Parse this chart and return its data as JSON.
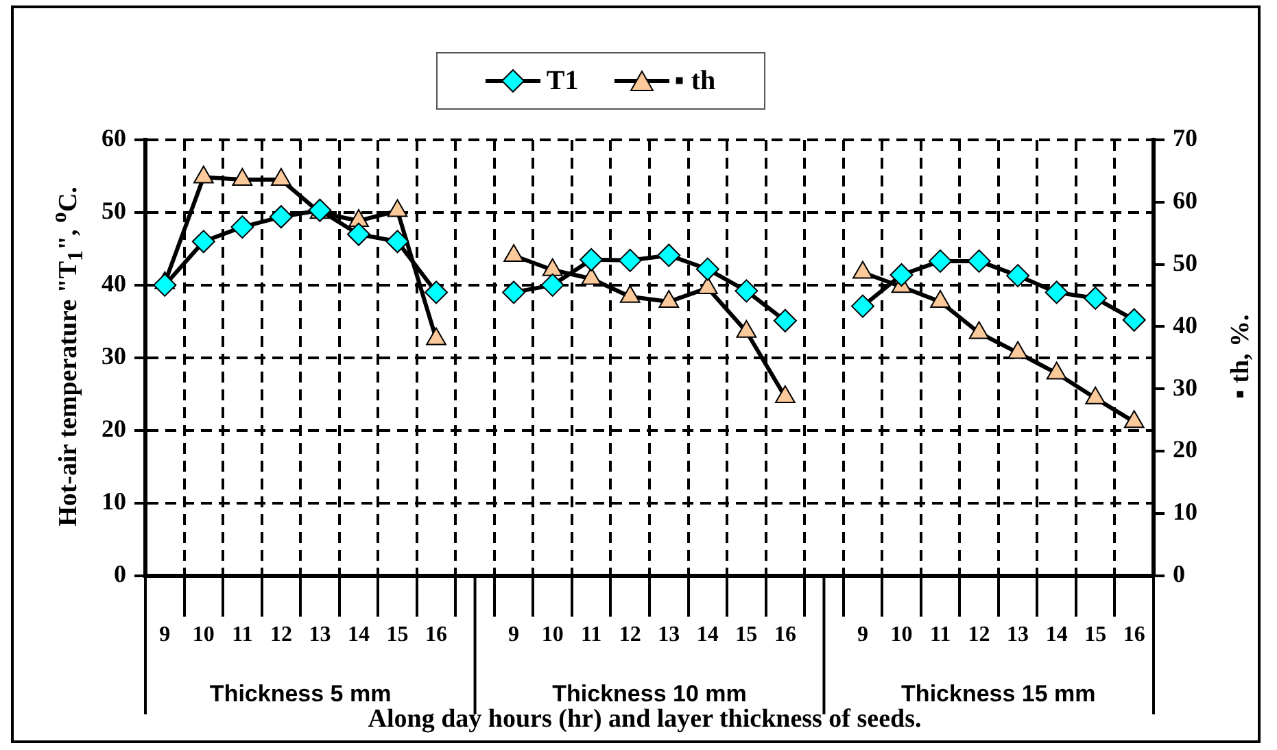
{
  "chart_data": {
    "type": "line",
    "xlabel": "Along day hours (hr) and layer thickness of seeds.",
    "ylabel": "Hot-air temperature \"T$_{1}$\", $^{o}$C.",
    "y2label": "▪ th, %.",
    "categories": [
      "9",
      "10",
      "11",
      "12",
      "13",
      "14",
      "15",
      "16",
      null,
      "9",
      "10",
      "11",
      "12",
      "13",
      "14",
      "15",
      "16",
      null,
      "9",
      "10",
      "11",
      "12",
      "13",
      "14",
      "15",
      "16"
    ],
    "annotations": [
      "Thickness 5 mm",
      "Thickness 10 mm",
      "Thickness 15 mm"
    ],
    "series": [
      {
        "name": "T1",
        "color": "#00ffff",
        "marker": "diamond",
        "values": [
          40,
          46,
          48,
          49.4,
          50.3,
          47,
          46,
          39,
          null,
          39,
          40,
          43.5,
          43.4,
          44.1,
          42.2,
          39.2,
          35.1,
          null,
          37.1,
          41.4,
          43.3,
          43.3,
          41.3,
          39,
          38.2,
          35.2
        ]
      },
      {
        "name": "▪ th",
        "color": "#fbc99a",
        "marker": "triangle",
        "axis": "y2",
        "values": [
          47,
          64,
          63.6,
          63.6,
          58.3,
          57,
          58.6,
          38,
          null,
          51.4,
          49.1,
          47.7,
          44.8,
          44,
          46.2,
          39.2,
          28.7,
          null,
          48.7,
          46.4,
          44,
          39,
          35.8,
          32.5,
          28.5,
          24.7
        ]
      }
    ],
    "ylim": [
      0,
      60
    ],
    "yticks": [
      0,
      10,
      20,
      30,
      40,
      50,
      60
    ],
    "y2lim": [
      0,
      70
    ],
    "y2ticks": [
      0,
      10,
      20,
      30,
      40,
      50,
      60,
      70
    ],
    "grid": true,
    "legend": "top",
    "line_style": "solid"
  }
}
